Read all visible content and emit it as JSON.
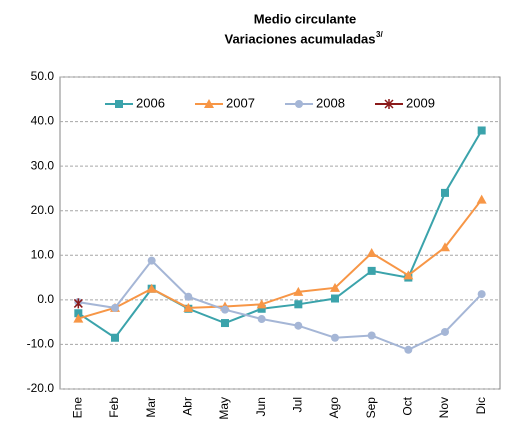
{
  "chart_data": {
    "type": "line",
    "title": "Medio circulante",
    "subtitle": "Variaciones acumuladas",
    "note_marker": "3/",
    "categories": [
      "Ene",
      "Feb",
      "Mar",
      "Abr",
      "May",
      "Jun",
      "Jul",
      "Ago",
      "Sep",
      "Oct",
      "Nov",
      "Dic"
    ],
    "series": [
      {
        "name": "2006",
        "color": "#3ba3ab",
        "marker": "square",
        "values": [
          -3,
          -8.5,
          2.5,
          -2,
          -5.2,
          -2,
          -1,
          0.3,
          6.5,
          5,
          24,
          38
        ]
      },
      {
        "name": "2007",
        "color": "#f79646",
        "marker": "triangle",
        "values": [
          -4.2,
          -1.8,
          2.5,
          -1.8,
          -1.5,
          -1,
          1.8,
          2.7,
          10.5,
          5.5,
          11.8,
          22.5
        ]
      },
      {
        "name": "2008",
        "color": "#a5b6d6",
        "marker": "circle",
        "values": [
          -0.5,
          -1.8,
          8.8,
          0.7,
          -2.2,
          -4.3,
          -5.8,
          -8.5,
          -8,
          -11.2,
          -7.2,
          1.3
        ]
      },
      {
        "name": "2009",
        "color": "#8b1a1a",
        "marker": "star",
        "values": [
          -0.8,
          null,
          null,
          null,
          null,
          null,
          null,
          null,
          null,
          null,
          null,
          null
        ]
      }
    ],
    "ylim": [
      -20,
      50
    ],
    "yticks": [
      {
        "value": -20,
        "label": "-20.0"
      },
      {
        "value": -10,
        "label": "-10.0"
      },
      {
        "value": 0,
        "label": "0.0"
      },
      {
        "value": 10,
        "label": "10.0"
      },
      {
        "value": 20,
        "label": "20.0"
      },
      {
        "value": 30,
        "label": "30.0"
      },
      {
        "value": 40,
        "label": "40.0"
      },
      {
        "value": 50,
        "label": "50.0"
      }
    ],
    "grid": true,
    "legend": "top"
  }
}
